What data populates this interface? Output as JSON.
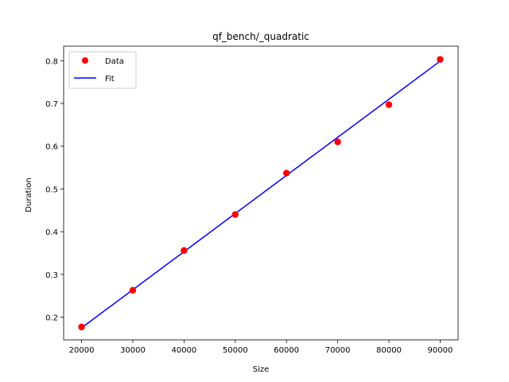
{
  "chart_data": {
    "type": "scatter",
    "title": "qf_bench/_quadratic",
    "xlabel": "Size",
    "ylabel": "Duration",
    "xlim": [
      16500,
      93500
    ],
    "ylim": [
      0.147,
      0.834
    ],
    "x_ticks": [
      20000,
      30000,
      40000,
      50000,
      60000,
      70000,
      80000,
      90000
    ],
    "y_ticks": [
      0.2,
      0.3,
      0.4,
      0.5,
      0.6,
      0.7,
      0.8
    ],
    "x_tick_labels": [
      "20000",
      "30000",
      "40000",
      "50000",
      "60000",
      "70000",
      "80000",
      "90000"
    ],
    "y_tick_labels": [
      "0.2",
      "0.3",
      "0.4",
      "0.5",
      "0.6",
      "0.7",
      "0.8"
    ],
    "grid": false,
    "legend_position": "upper-left",
    "series": [
      {
        "name": "Data",
        "kind": "scatter",
        "color": "#ff0000",
        "x": [
          20000,
          30000,
          40000,
          50000,
          60000,
          70000,
          80000,
          90000
        ],
        "y": [
          0.177,
          0.263,
          0.356,
          0.44,
          0.537,
          0.61,
          0.697,
          0.803
        ]
      },
      {
        "name": "Fit",
        "kind": "line",
        "color": "#0000ff",
        "x": [
          20000,
          90000
        ],
        "y": [
          0.175,
          0.799
        ]
      }
    ]
  }
}
